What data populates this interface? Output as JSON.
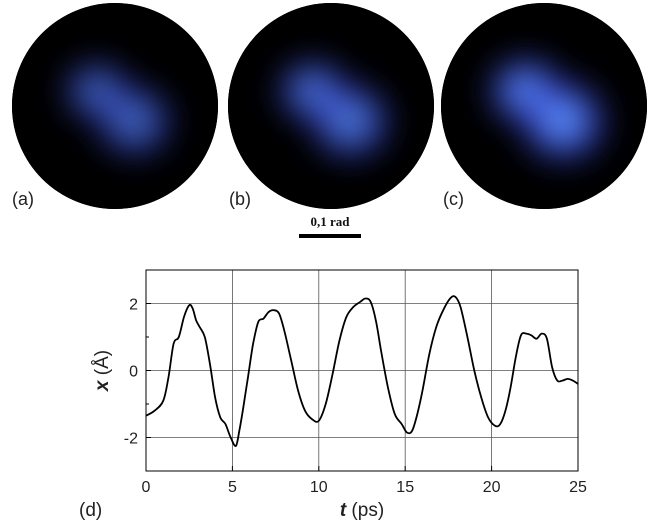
{
  "panels": [
    {
      "label": "(a)",
      "brightness": 0.55
    },
    {
      "label": "(b)",
      "brightness": 0.75
    },
    {
      "label": "(c)",
      "brightness": 1.0
    }
  ],
  "scalebar": {
    "label": "0,1 rad"
  },
  "colors": {
    "blob_core": "#6fd0ff",
    "blob_mid": "#4a5cff",
    "blob_edge": "#1a1a8a",
    "disc_bg": "#000000",
    "curve": "#000000"
  },
  "chart_data": {
    "type": "line",
    "panel_label": "(d)",
    "title": "",
    "xlabel_var": "t",
    "xlabel_unit": " (ps)",
    "ylabel_var": "x",
    "ylabel_unit": " (Å)",
    "xlim": [
      0,
      25
    ],
    "ylim": [
      -3,
      3
    ],
    "x_ticks": [
      0,
      5,
      10,
      15,
      20,
      25
    ],
    "y_ticks": [
      -2,
      0,
      2
    ],
    "x_tick_labels": [
      "0",
      "5",
      "10",
      "15",
      "20",
      "25"
    ],
    "y_tick_labels": [
      "-2",
      "0",
      "2"
    ],
    "grid": true,
    "series": [
      {
        "x": [
          0,
          0.5,
          1.0,
          1.3,
          1.6,
          1.9,
          2.2,
          2.5,
          2.7,
          2.9,
          3.1,
          3.4,
          3.7,
          4.0,
          4.3,
          4.6,
          4.9,
          5.2,
          5.4,
          5.6,
          5.9,
          6.2,
          6.5,
          6.8,
          7.1,
          7.4,
          7.7,
          8.0,
          8.4,
          8.8,
          9.2,
          9.6,
          10.0,
          10.4,
          10.8,
          11.2,
          11.6,
          12.0,
          12.4,
          12.7,
          13.0,
          13.3,
          13.6,
          14.0,
          14.4,
          14.8,
          15.1,
          15.4,
          15.7,
          16.0,
          16.4,
          16.8,
          17.2,
          17.6,
          17.9,
          18.2,
          18.6,
          19.0,
          19.4,
          19.8,
          20.2,
          20.5,
          20.8,
          21.1,
          21.4,
          21.7,
          22.0,
          22.3,
          22.6,
          22.9,
          23.2,
          23.5,
          23.8,
          24.1,
          24.4,
          24.7,
          25.0
        ],
        "y": [
          -1.35,
          -1.2,
          -0.9,
          -0.2,
          0.8,
          1.0,
          1.6,
          1.95,
          1.85,
          1.5,
          1.3,
          1.0,
          0.2,
          -0.8,
          -1.4,
          -1.6,
          -2.0,
          -2.25,
          -1.8,
          -1.2,
          -0.2,
          0.8,
          1.45,
          1.55,
          1.75,
          1.8,
          1.7,
          1.2,
          0.3,
          -0.6,
          -1.2,
          -1.45,
          -1.5,
          -1.0,
          -0.1,
          0.9,
          1.6,
          1.9,
          2.05,
          2.15,
          2.05,
          1.5,
          0.6,
          -0.5,
          -1.3,
          -1.6,
          -1.85,
          -1.8,
          -1.3,
          -0.6,
          0.5,
          1.3,
          1.8,
          2.15,
          2.2,
          1.9,
          1.0,
          0.0,
          -0.8,
          -1.4,
          -1.65,
          -1.6,
          -1.2,
          -0.5,
          0.4,
          1.05,
          1.1,
          1.05,
          0.95,
          1.1,
          0.95,
          0.1,
          -0.3,
          -0.3,
          -0.25,
          -0.3,
          -0.4
        ]
      }
    ]
  }
}
